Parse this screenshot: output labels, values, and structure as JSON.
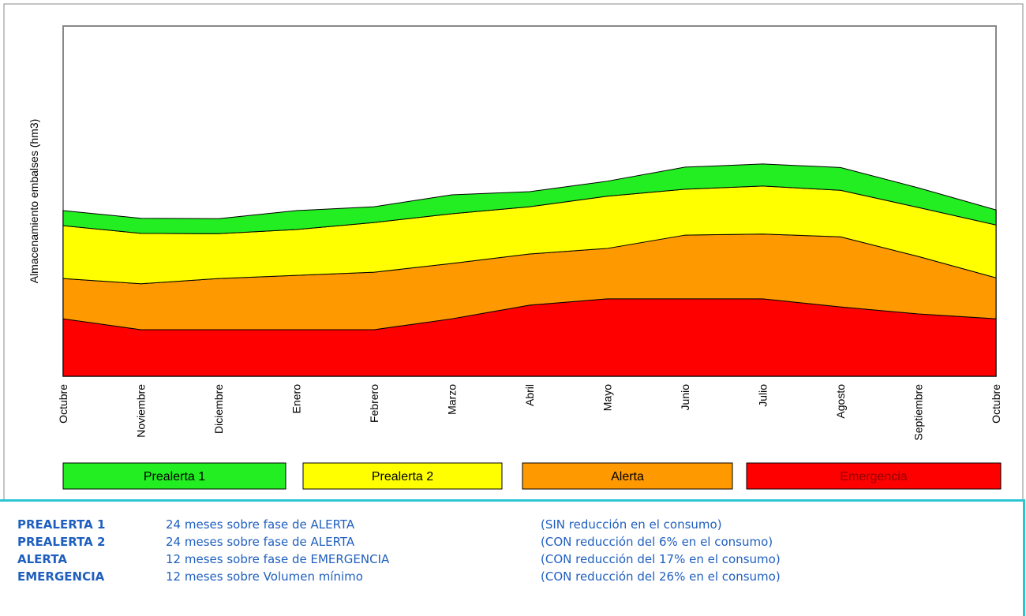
{
  "chart_data": {
    "type": "stacked_area",
    "y_label": "Almacenamiento embalses (hm3)",
    "categories": [
      "Octubre",
      "Noviembre",
      "Diciembre",
      "Enero",
      "Febrero",
      "Marzo",
      "Abril",
      "Mayo",
      "Junio",
      "Julio",
      "Agosto",
      "Septiembre",
      "Octubre"
    ],
    "ylim": [
      0,
      100
    ],
    "series": [
      {
        "name": "Emergencia",
        "color": "#ff0000",
        "values": [
          16.4,
          13.3,
          13.3,
          13.3,
          13.3,
          16.4,
          20.3,
          22.1,
          22.1,
          22.1,
          19.8,
          17.8,
          16.4
        ]
      },
      {
        "name": "Alerta",
        "color": "#ff9900",
        "values": [
          11.5,
          13.1,
          14.6,
          15.5,
          16.4,
          15.8,
          14.6,
          14.4,
          18.2,
          18.5,
          20.0,
          16.4,
          11.7
        ]
      },
      {
        "name": "Prealerta 2",
        "color": "#ffff00",
        "values": [
          15.1,
          14.4,
          12.8,
          13.1,
          14.2,
          14.2,
          13.5,
          14.9,
          13.1,
          13.7,
          13.3,
          14.0,
          15.1
        ]
      },
      {
        "name": "Prealerta 1",
        "color": "#22ee22",
        "values": [
          4.3,
          4.3,
          4.3,
          5.4,
          4.5,
          5.4,
          4.3,
          4.3,
          6.3,
          6.3,
          6.5,
          5.6,
          4.3
        ]
      }
    ]
  },
  "table": {
    "rows": [
      [
        "PREALERTA 1",
        "24 meses sobre fase de ALERTA",
        "(SIN reducción en el consumo)"
      ],
      [
        "PREALERTA 2",
        "24 meses sobre fase de ALERTA",
        "(CON reducción del 6% en el consumo)"
      ],
      [
        "ALERTA",
        "12 meses sobre fase de EMERGENCIA",
        "(CON reducción del 17% en el consumo)"
      ],
      [
        "EMERGENCIA",
        "12 meses sobre Volumen mínimo",
        "(CON reducción del 26% en el consumo)"
      ]
    ]
  }
}
